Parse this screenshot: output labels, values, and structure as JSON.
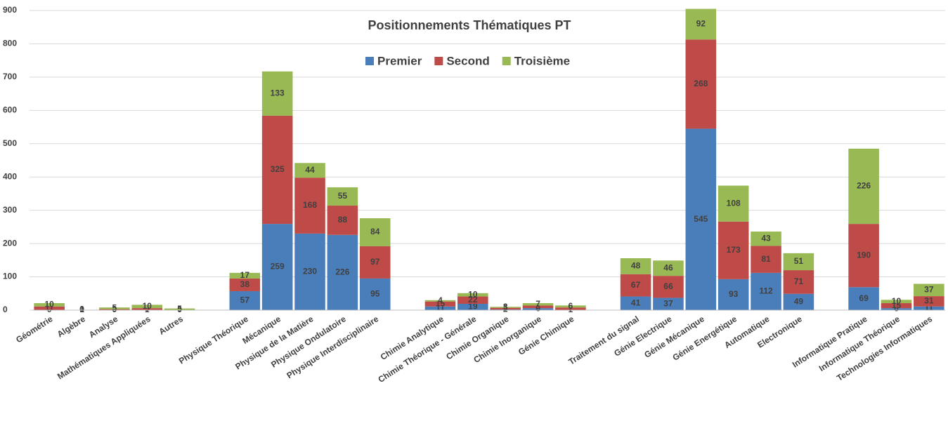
{
  "chart_data": {
    "type": "stacked_bar",
    "title": "Positionnements Thématiques PT",
    "categories": [
      "Géométrie",
      "Algèbre",
      "Analyse",
      "Mathématiques Appliquées",
      "Autres",
      null,
      "Physique Théorique",
      "Mécanique",
      "Physique de la Matière",
      "Physique Ondulatoire",
      "Physique Interdisciplinaire",
      null,
      "Chimie Analytique",
      "Chimie Théorique - Générale",
      "Chimie Organique",
      "Chimie Inorganique",
      "Génie Chimique",
      null,
      "Traitement du signal",
      "Génie Electrique",
      "Génie Mécanique",
      "Génie Energétique",
      "Automatique",
      "Electronique",
      null,
      "Informatique Pratique",
      "Informatique Théorique",
      "Technologies Informatiques"
    ],
    "series": [
      {
        "name": "Premier",
        "color": "#4a7ebb",
        "values": [
          0,
          0,
          0,
          1,
          0,
          null,
          57,
          259,
          230,
          226,
          95,
          null,
          11,
          19,
          2,
          6,
          1,
          null,
          41,
          37,
          545,
          93,
          112,
          49,
          null,
          69,
          6,
          11
        ]
      },
      {
        "name": "Second",
        "color": "#be4b48",
        "values": [
          11,
          1,
          3,
          5,
          0,
          null,
          38,
          325,
          168,
          88,
          97,
          null,
          15,
          22,
          5,
          8,
          7,
          null,
          67,
          66,
          268,
          173,
          81,
          71,
          null,
          190,
          15,
          31
        ]
      },
      {
        "name": "Troisième",
        "color": "#98b954",
        "values": [
          10,
          0,
          5,
          10,
          5,
          null,
          17,
          133,
          44,
          55,
          84,
          null,
          4,
          10,
          3,
          7,
          6,
          null,
          48,
          46,
          92,
          108,
          43,
          51,
          null,
          226,
          10,
          37
        ]
      }
    ],
    "ylim": [
      0,
      900
    ],
    "yticks": [
      0,
      100,
      200,
      300,
      400,
      500,
      600,
      700,
      800,
      900
    ],
    "grid": true,
    "legend": "top"
  }
}
